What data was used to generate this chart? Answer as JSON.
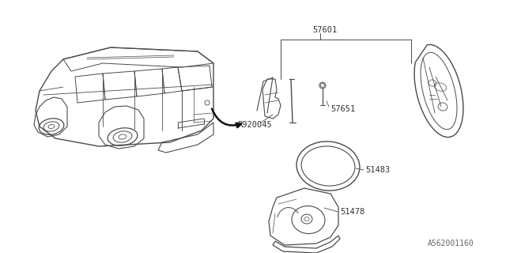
{
  "background_color": "#ffffff",
  "line_color": "#4a4a4a",
  "text_color": "#333333",
  "diagram_id": "A562001160",
  "font_size_labels": 7.5,
  "font_size_diagram_id": 7,
  "label_57601": "57601",
  "label_57651": "57651",
  "label_R920045": "R920045",
  "label_51483": "51483",
  "label_51478": "51478"
}
